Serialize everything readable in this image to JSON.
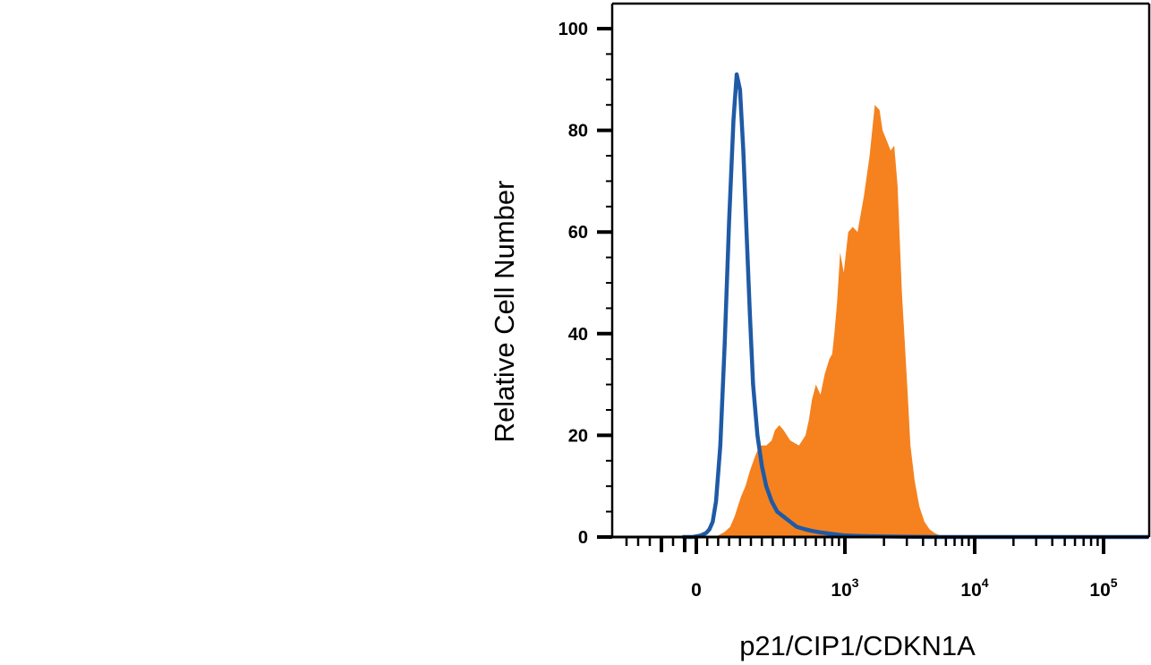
{
  "chart_data": {
    "type": "area",
    "title": "",
    "xlabel": "p21/CIP1/CDKN1A",
    "ylabel": "Relative Cell Number",
    "x_scale": "biexponential",
    "ylim": [
      0,
      100
    ],
    "yticks": [
      {
        "value": 0,
        "label": "0"
      },
      {
        "value": 20,
        "label": "20"
      },
      {
        "value": 40,
        "label": "40"
      },
      {
        "value": 60,
        "label": "60"
      },
      {
        "value": 80,
        "label": "80"
      },
      {
        "value": 100,
        "label": "100"
      }
    ],
    "xticks": [
      {
        "value": 0,
        "base": "0",
        "exp": ""
      },
      {
        "value": 1000,
        "base": "10",
        "exp": "3"
      },
      {
        "value": 10000,
        "base": "10",
        "exp": "4"
      },
      {
        "value": 100000,
        "base": "10",
        "exp": "5"
      }
    ],
    "grid": false,
    "legend": "none",
    "series": [
      {
        "style": "filled",
        "color": "#F5821F",
        "x": [
          85,
          100,
          130,
          155,
          175,
          205,
          225,
          245,
          270,
          290,
          320,
          345,
          360,
          380,
          400,
          430,
          470,
          500,
          530,
          560,
          600,
          650,
          700,
          760,
          800,
          830,
          870,
          920,
          980,
          1060,
          1150,
          1250,
          1400,
          1550,
          1700,
          1850,
          1950,
          2100,
          2250,
          2400,
          2550,
          2650,
          2750,
          2900,
          3050,
          3200,
          3450,
          3750,
          4100,
          4500,
          4900,
          5300,
          5800,
          6400,
          7000,
          7700,
          8400
        ],
        "y": [
          0,
          0.3,
          1,
          2,
          4,
          8,
          10,
          13,
          16,
          18,
          18,
          19,
          21,
          22,
          21,
          19,
          18,
          20,
          23,
          27,
          30,
          28,
          32,
          35,
          36,
          40,
          46,
          56,
          52,
          60,
          61,
          60,
          67,
          75,
          85,
          84,
          80,
          78,
          76,
          77,
          69,
          58,
          48,
          38,
          28,
          18,
          11,
          6,
          3,
          1.5,
          0.8,
          0.4,
          0.2,
          0.1,
          0.05,
          0.02,
          0
        ]
      },
      {
        "style": "line",
        "color": "#1F5AA6",
        "x": [
          -60,
          -15,
          20,
          45,
          60,
          75,
          90,
          110,
          130,
          150,
          170,
          185,
          200,
          215,
          230,
          245,
          260,
          280,
          300,
          320,
          345,
          370,
          400,
          430,
          460,
          500,
          560,
          650,
          800,
          1000,
          1300,
          2000,
          5000,
          10000,
          30000,
          130000
        ],
        "y": [
          0,
          0,
          0.3,
          0.8,
          1.5,
          3,
          7,
          18,
          38,
          62,
          82,
          91,
          88,
          76,
          60,
          44,
          30,
          20,
          14,
          10,
          7,
          5,
          4,
          3,
          2,
          1.5,
          1.2,
          0.9,
          0.6,
          0.3,
          0.2,
          0.1,
          0,
          0,
          0,
          0
        ]
      }
    ]
  }
}
